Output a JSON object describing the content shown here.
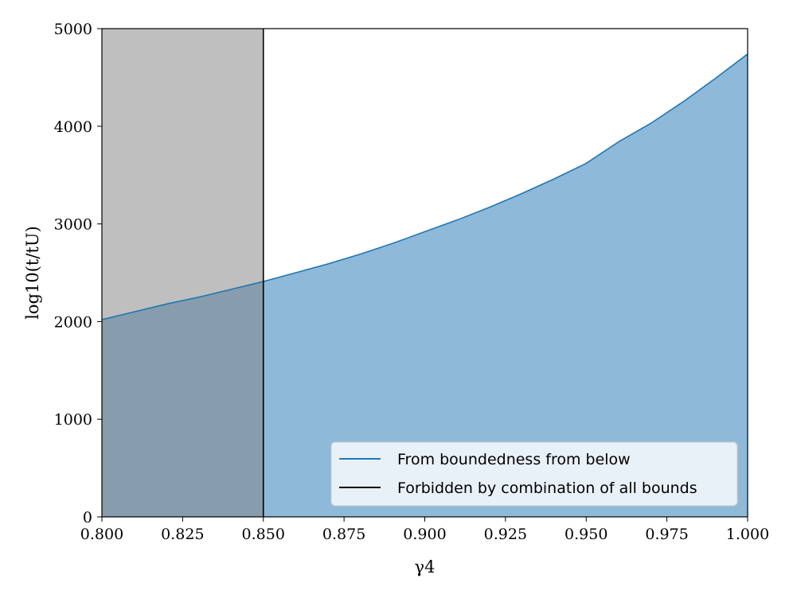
{
  "chart_data": {
    "type": "area",
    "xlabel": "γ4",
    "ylabel": "log10(t/tU)",
    "xlim": [
      0.8,
      1.0
    ],
    "ylim": [
      0,
      5000
    ],
    "xticks": [
      "0.800",
      "0.825",
      "0.850",
      "0.875",
      "0.900",
      "0.925",
      "0.950",
      "0.975",
      "1.000"
    ],
    "yticks": [
      "0",
      "1000",
      "2000",
      "3000",
      "4000",
      "5000"
    ],
    "series": [
      {
        "name": "From boundedness from below",
        "color": "#1f77b4",
        "fill_color": "#8fb9d9",
        "x": [
          0.8,
          0.81,
          0.82,
          0.83,
          0.84,
          0.85,
          0.86,
          0.87,
          0.88,
          0.89,
          0.9,
          0.91,
          0.92,
          0.93,
          0.94,
          0.95,
          0.96,
          0.97,
          0.98,
          0.99,
          1.0
        ],
        "y": [
          2020,
          2100,
          2180,
          2250,
          2330,
          2410,
          2500,
          2590,
          2690,
          2800,
          2920,
          3040,
          3170,
          3310,
          3460,
          3620,
          3840,
          4030,
          4250,
          4490,
          4740
        ]
      },
      {
        "name": "Forbidden by combination of all bounds",
        "color": "#000000",
        "fill_color": "#808080",
        "type": "vertical-band",
        "x_range": [
          0.8,
          0.85
        ]
      }
    ],
    "legend": "lower-right",
    "grid": false
  }
}
